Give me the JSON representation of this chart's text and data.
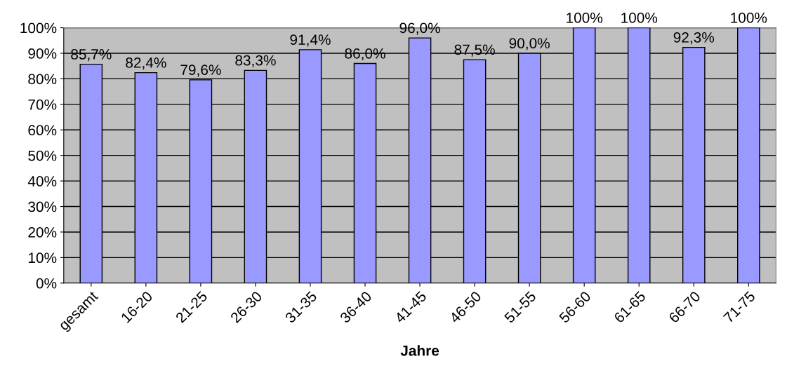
{
  "chart_data": {
    "type": "bar",
    "xlabel": "Jahre",
    "categories": [
      "gesamt",
      "16-20",
      "21-25",
      "26-30",
      "31-35",
      "36-40",
      "41-45",
      "46-50",
      "51-55",
      "56-60",
      "61-65",
      "66-70",
      "71-75"
    ],
    "values": [
      85.7,
      82.4,
      79.6,
      83.3,
      91.4,
      86.0,
      96.0,
      87.5,
      90.0,
      100,
      100,
      92.3,
      100
    ],
    "value_labels": [
      "85,7%",
      "82,4%",
      "79,6%",
      "83,3%",
      "91,4%",
      "86,0%",
      "96,0%",
      "87,5%",
      "90,0%",
      "100%",
      "100%",
      "92,3%",
      "100%"
    ],
    "color": "#9999ff",
    "ylim": [
      0,
      100
    ],
    "yticks": [
      {
        "value": 0,
        "label": "0%"
      },
      {
        "value": 10,
        "label": "10%"
      },
      {
        "value": 20,
        "label": "20%"
      },
      {
        "value": 30,
        "label": "30%"
      },
      {
        "value": 40,
        "label": "40%"
      },
      {
        "value": 50,
        "label": "50%"
      },
      {
        "value": 60,
        "label": "60%"
      },
      {
        "value": 70,
        "label": "70%"
      },
      {
        "value": 80,
        "label": "80%"
      },
      {
        "value": 90,
        "label": "90%"
      },
      {
        "value": 100,
        "label": "100%"
      }
    ],
    "grid": "y",
    "legend": false
  }
}
